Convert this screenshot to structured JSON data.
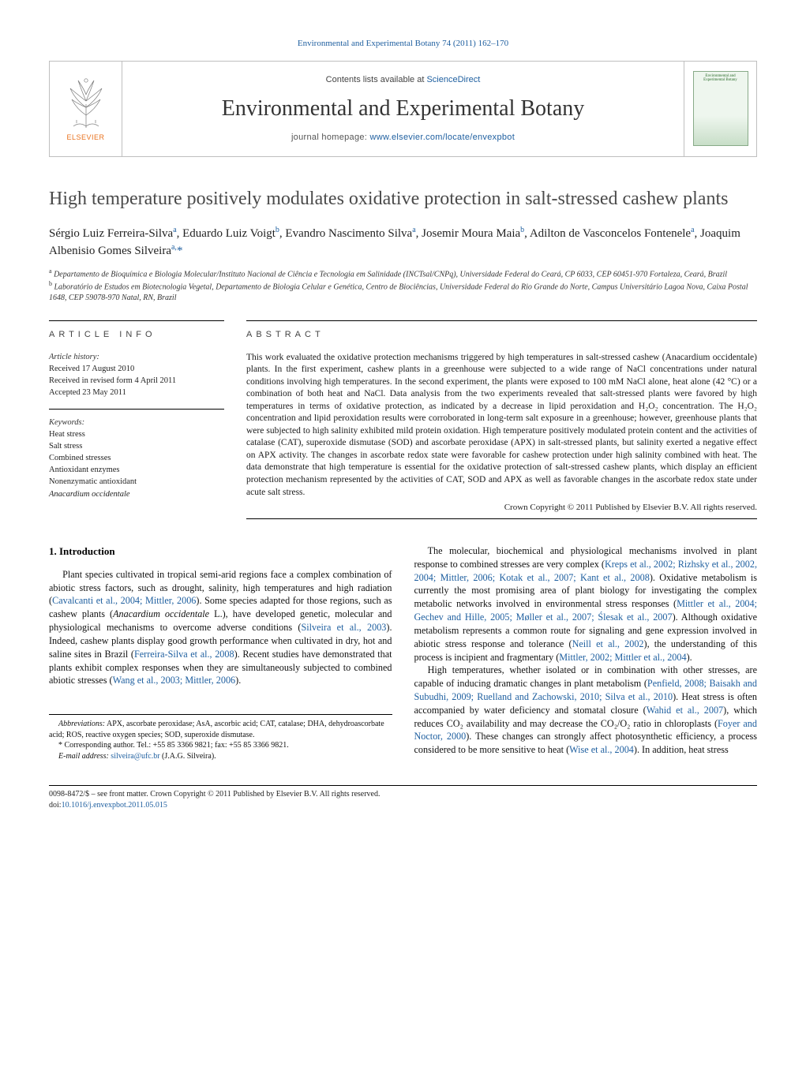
{
  "header": {
    "citation_prefix": "Environmental and Experimental Botany 74 (2011) 162–170",
    "contents_prefix": "Contents lists available at ",
    "contents_link": "ScienceDirect",
    "journal_name": "Environmental and Experimental Botany",
    "homepage_prefix": "journal homepage: ",
    "homepage_link": "www.elsevier.com/locate/envexpbot",
    "elsevier_label": "ELSEVIER",
    "cover_label": "Environmental and Experimental Botany"
  },
  "article": {
    "title": "High temperature positively modulates oxidative protection in salt-stressed cashew plants",
    "authors_html": "Sérgio Luiz Ferreira-Silva<sup>a</sup>, Eduardo Luiz Voigt<sup>b</sup>, Evandro Nascimento Silva<sup>a</sup>, Josemir Moura Maia<sup>b</sup>, Adilton de Vasconcelos Fontenele<sup>a</sup>, Joaquim Albenisio Gomes Silveira<sup>a,</sup><span class=\"star\">*</span>",
    "affiliations": [
      {
        "sup": "a",
        "text": "Departamento de Bioquímica e Biologia Molecular/Instituto Nacional de Ciência e Tecnologia em Salinidade (INCTsal/CNPq), Universidade Federal do Ceará, CP 6033, CEP 60451-970 Fortaleza, Ceará, Brazil"
      },
      {
        "sup": "b",
        "text": "Laboratório de Estudos em Biotecnologia Vegetal, Departamento de Biologia Celular e Genética, Centro de Biociências, Universidade Federal do Rio Grande do Norte, Campus Universitário Lagoa Nova, Caixa Postal 1648, CEP 59078-970 Natal, RN, Brazil"
      }
    ]
  },
  "info": {
    "section_label": "article info",
    "history_head": "Article history:",
    "history": [
      "Received 17 August 2010",
      "Received in revised form 4 April 2011",
      "Accepted 23 May 2011"
    ],
    "keywords_head": "Keywords:",
    "keywords": [
      {
        "text": "Heat stress",
        "ital": false
      },
      {
        "text": "Salt stress",
        "ital": false
      },
      {
        "text": "Combined stresses",
        "ital": false
      },
      {
        "text": "Antioxidant enzymes",
        "ital": false
      },
      {
        "text": "Nonenzymatic antioxidant",
        "ital": false
      },
      {
        "text": "Anacardium occidentale",
        "ital": true
      }
    ]
  },
  "abstract": {
    "section_label": "abstract",
    "text": "This work evaluated the oxidative protection mechanisms triggered by high temperatures in salt-stressed cashew (Anacardium occidentale) plants. In the first experiment, cashew plants in a greenhouse were subjected to a wide range of NaCl concentrations under natural conditions involving high temperatures. In the second experiment, the plants were exposed to 100 mM NaCl alone, heat alone (42 °C) or a combination of both heat and NaCl. Data analysis from the two experiments revealed that salt-stressed plants were favored by high temperatures in terms of oxidative protection, as indicated by a decrease in lipid peroxidation and H₂O₂ concentration. The H₂O₂ concentration and lipid peroxidation results were corroborated in long-term salt exposure in a greenhouse; however, greenhouse plants that were subjected to high salinity exhibited mild protein oxidation. High temperature positively modulated protein content and the activities of catalase (CAT), superoxide dismutase (SOD) and ascorbate peroxidase (APX) in salt-stressed plants, but salinity exerted a negative effect on APX activity. The changes in ascorbate redox state were favorable for cashew protection under high salinity combined with heat. The data demonstrate that high temperature is essential for the oxidative protection of salt-stressed cashew plants, which display an efficient protection mechanism represented by the activities of CAT, SOD and APX as well as favorable changes in the ascorbate redox state under acute salt stress.",
    "copyright": "Crown Copyright © 2011 Published by Elsevier B.V. All rights reserved."
  },
  "body": {
    "section_number": "1.",
    "section_title": "Introduction",
    "para1_pre": "Plant species cultivated in tropical semi-arid regions face a complex combination of abiotic stress factors, such as drought, salinity, high temperatures and high radiation (",
    "para1_link1": "Cavalcanti et al., 2004; Mittler, 2006",
    "para1_mid1": "). Some species adapted for those regions, such as cashew plants (",
    "para1_ital": "Anacardium occidentale",
    "para1_mid2": " L.), have developed genetic, molecular and physiological mechanisms to overcome adverse conditions (",
    "para1_link2": "Silveira et al., 2003",
    "para1_mid3": "). Indeed, cashew plants display good growth performance when cultivated in dry, hot and saline sites in Brazil (",
    "para1_link3": "Ferreira-Silva et al., 2008",
    "para1_mid4": "). Recent studies have demonstrated that plants exhibit complex responses when they are simultaneously subjected to combined abiotic stresses (",
    "para1_link4": "Wang et al., 2003; Mittler, 2006",
    "para1_end": ").",
    "para2_pre": "The molecular, biochemical and physiological mechanisms involved in plant response to combined stresses are very complex (",
    "para2_link1": "Kreps et al., 2002; Rizhsky et al., 2002, 2004; Mittler, 2006; Kotak et al., 2007; Kant et al., 2008",
    "para2_mid1": "). Oxidative metabolism is currently the most promising area of plant biology for investigating the complex metabolic networks involved in environmental stress responses (",
    "para2_link2": "Mittler et al., 2004; Gechev and Hille, 2005; Møller et al., 2007; Ślesak et al., 2007",
    "para2_mid2": "). Although oxidative metabolism represents a common route for signaling and gene expression involved in abiotic stress response and tolerance (",
    "para2_link3": "Neill et al., 2002",
    "para2_mid3": "), the understanding of this process is incipient and fragmentary (",
    "para2_link4": "Mittler, 2002; Mittler et al., 2004",
    "para2_end": ").",
    "para3_pre": "High temperatures, whether isolated or in combination with other stresses, are capable of inducing dramatic changes in plant metabolism (",
    "para3_link1": "Penfield, 2008; Baisakh and Subudhi, 2009; Ruelland and Zachowski, 2010; Silva et al., 2010",
    "para3_mid1": "). Heat stress is often accompanied by water deficiency and stomatal closure (",
    "para3_link2": "Wahid et al., 2007",
    "para3_mid2": "), which reduces CO₂ availability and may decrease the CO₂/O₂ ratio in chloroplasts (",
    "para3_link3": "Foyer and Noctor, 2000",
    "para3_mid3": "). These changes can strongly affect photosynthetic efficiency, a process considered to be more sensitive to heat (",
    "para3_link4": "Wise et al., 2004",
    "para3_end": "). In addition, heat stress"
  },
  "footnotes": {
    "abbrev_head": "Abbreviations:",
    "abbrev_text": " APX, ascorbate peroxidase; AsA, ascorbic acid; CAT, catalase; DHA, dehydroascorbate acid; ROS, reactive oxygen species; SOD, superoxide dismutase.",
    "corr_star": "*",
    "corr_text": " Corresponding author. Tel.: +55 85 3366 9821; fax: +55 85 3366 9821.",
    "email_head": "E-mail address:",
    "email_link": "silveira@ufc.br",
    "email_tail": " (J.A.G. Silveira)."
  },
  "footer": {
    "line1": "0098-8472/$ – see front matter. Crown Copyright © 2011 Published by Elsevier B.V. All rights reserved.",
    "doi_prefix": "doi:",
    "doi_link": "10.1016/j.envexpbot.2011.05.015"
  },
  "colors": {
    "link": "#2060a0",
    "elsevier_orange": "#e9711c",
    "text": "#111111",
    "rule": "#000000",
    "border": "#bfbfbf"
  }
}
